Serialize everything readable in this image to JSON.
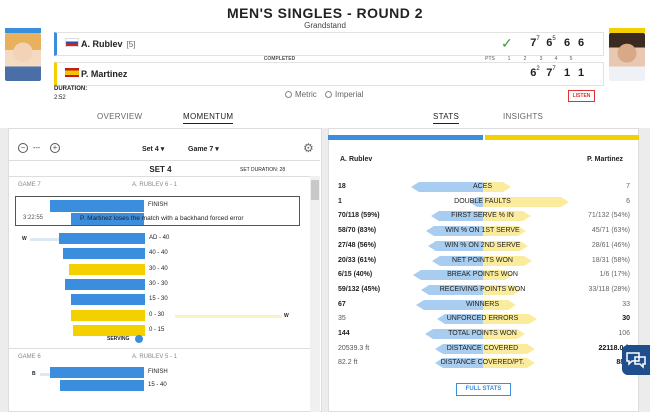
{
  "header": {
    "title": "MEN'S SINGLES - ROUND 2",
    "venue": "Grandstand"
  },
  "players": [
    {
      "name": "A. Rublev",
      "seed": "[5]",
      "country": "RUS",
      "sets": [
        {
          "v": "7",
          "tb": "7"
        },
        {
          "v": "6",
          "tb": "5"
        },
        {
          "v": "6",
          "tb": ""
        },
        {
          "v": "6",
          "tb": ""
        }
      ]
    },
    {
      "name": "P. Martinez",
      "seed": "",
      "country": "ESP",
      "sets": [
        {
          "v": "6",
          "tb": "2"
        },
        {
          "v": "7",
          "tb": "7"
        },
        {
          "v": "1",
          "tb": ""
        },
        {
          "v": "1",
          "tb": ""
        }
      ]
    }
  ],
  "scoreboard": {
    "status": "COMPLETED",
    "cols": [
      "PTS",
      "1",
      "2",
      "3",
      "4",
      "5"
    ],
    "duration_label": "DURATION:",
    "duration": "2:52"
  },
  "units": {
    "metric": "Metric",
    "imperial": "Imperial"
  },
  "listen": "LISTEN",
  "tabs": {
    "overview": "OVERVIEW",
    "momentum": "MOMENTUM",
    "stats": "STATS",
    "insights": "INSIGHTS"
  },
  "momentum": {
    "zoom_value": "---",
    "set_select": "Set 4",
    "game_select": "Game 7",
    "set_title": "SET 4",
    "set_duration": "SET DURATION: 28",
    "game7": {
      "label": "GAME 7",
      "score": "A. RUBLEV 6 - 1"
    },
    "highlight": {
      "finish": "FINISH",
      "time": "3:22:55",
      "text": "P. Martinez loses the match with a backhand forced error"
    },
    "points": [
      {
        "score": "AD - 40",
        "side": "blue",
        "w": 86,
        "winner": "W"
      },
      {
        "score": "40 - 40",
        "side": "blue",
        "w": 82,
        "winner": ""
      },
      {
        "score": "30 - 40",
        "side": "yellow",
        "w": 76,
        "winner": ""
      },
      {
        "score": "30 - 30",
        "side": "blue",
        "w": 80,
        "winner": ""
      },
      {
        "score": "15 - 30",
        "side": "blue",
        "w": 74,
        "winner": ""
      },
      {
        "score": "0 - 30",
        "side": "yellow",
        "w": 74,
        "winner": "W"
      },
      {
        "score": "0 - 15",
        "side": "yellow",
        "w": 72,
        "winner": ""
      }
    ],
    "serving": "SERVING",
    "game6": {
      "label": "GAME 6",
      "score": "A. RUBLEV 5 - 1",
      "finish": "FINISH",
      "next": "15 - 40",
      "marker": "B"
    }
  },
  "stats": {
    "p1": "A. Rublev",
    "p2": "P. Martinez",
    "rows": [
      {
        "label": "ACES",
        "l": "18",
        "r": "7",
        "lw": 0.72,
        "rw": 0.28,
        "lb": true,
        "rb": false
      },
      {
        "label": "DOUBLE FAULTS",
        "l": "1",
        "r": "6",
        "lw": 0.14,
        "rw": 0.86,
        "lb": true,
        "rb": false
      },
      {
        "label": "FIRST SERVE % IN",
        "l": "70/118 (59%)",
        "r": "71/132 (54%)",
        "lw": 0.52,
        "rw": 0.48,
        "lb": true,
        "rb": false
      },
      {
        "label": "WIN % ON 1ST SERVE",
        "l": "58/70 (83%)",
        "r": "45/71 (63%)",
        "lw": 0.57,
        "rw": 0.43,
        "lb": true,
        "rb": false
      },
      {
        "label": "WIN % ON 2ND SERVE",
        "l": "27/48 (56%)",
        "r": "28/61 (46%)",
        "lw": 0.55,
        "rw": 0.45,
        "lb": true,
        "rb": false
      },
      {
        "label": "NET POINTS WON",
        "l": "20/33 (61%)",
        "r": "18/31 (58%)",
        "lw": 0.51,
        "rw": 0.49,
        "lb": true,
        "rb": false
      },
      {
        "label": "BREAK POINTS WON",
        "l": "6/15 (40%)",
        "r": "1/6 (17%)",
        "lw": 0.7,
        "rw": 0.3,
        "lb": true,
        "rb": false
      },
      {
        "label": "RECEIVING POINTS WON",
        "l": "59/132 (45%)",
        "r": "33/118 (28%)",
        "lw": 0.62,
        "rw": 0.38,
        "lb": true,
        "rb": false
      },
      {
        "label": "WINNERS",
        "l": "67",
        "r": "33",
        "lw": 0.67,
        "rw": 0.33,
        "lb": true,
        "rb": false
      },
      {
        "label": "UNFORCED ERRORS",
        "l": "35",
        "r": "30",
        "lw": 0.46,
        "rw": 0.54,
        "lb": false,
        "rb": true
      },
      {
        "label": "TOTAL POINTS WON",
        "l": "144",
        "r": "106",
        "lw": 0.58,
        "rw": 0.42,
        "lb": true,
        "rb": false
      },
      {
        "label": "DISTANCE COVERED",
        "l": "20539.3 ft",
        "r": "22118.0 ft",
        "lw": 0.48,
        "rw": 0.52,
        "lb": false,
        "rb": true
      },
      {
        "label": "DISTANCE COVERED/PT.",
        "l": "82.2 ft",
        "r": "88.5",
        "lw": 0.48,
        "rw": 0.52,
        "lb": false,
        "rb": true
      }
    ],
    "full_stats": "FULL STATS"
  },
  "colors": {
    "blue": "#3b8ede",
    "yellow": "#f5d000",
    "blue_light": "#a8cdf0",
    "yellow_light": "#fbec9d"
  },
  "icons": [
    "checkmark-icon",
    "zoom-out-icon",
    "zoom-in-icon",
    "gear-icon",
    "serving-ball-icon",
    "chat-icon"
  ]
}
